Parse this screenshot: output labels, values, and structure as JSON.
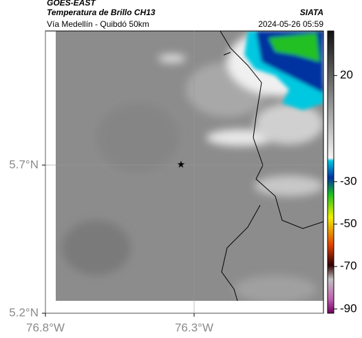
{
  "header": {
    "title": "GOES-EAST",
    "subtitle": "Temperatura de Brillo CH13",
    "caption": "Vía Medellín - Quibdó 50km",
    "source": "SIATA",
    "timestamp": "2024-05-26 05:59"
  },
  "map": {
    "xlim": [
      -76.8,
      -75.865
    ],
    "ylim": [
      5.2,
      6.153
    ],
    "xticks": [
      {
        "value": -76.8,
        "label": "76.8°W"
      },
      {
        "value": -76.3,
        "label": "76.3°W"
      }
    ],
    "yticks": [
      {
        "value": 5.2,
        "label": "5.2°N"
      },
      {
        "value": 5.7,
        "label": "5.7°N"
      }
    ],
    "marker": [
      -76.344,
      5.7
    ]
  },
  "colorbar": {
    "lim": [
      41,
      -92
    ],
    "ticks": [
      20,
      -30,
      -50,
      -70,
      -90
    ]
  }
}
